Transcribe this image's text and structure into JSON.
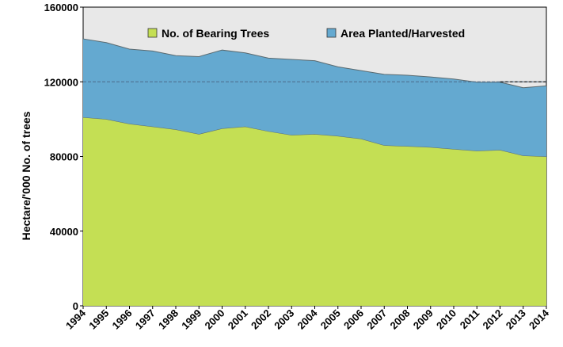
{
  "chart_data": {
    "type": "area",
    "stacked": true,
    "ylabel": "Hectare/'000 No. of trees",
    "xlabel": "",
    "ylim": [
      0,
      160000
    ],
    "yticks": [
      0,
      40000,
      80000,
      120000,
      160000
    ],
    "grid": true,
    "legend_position": "top",
    "x": [
      "1994",
      "1995",
      "1996",
      "1997",
      "1998",
      "1999",
      "2000",
      "2001",
      "2002",
      "2003",
      "2004",
      "2005",
      "2006",
      "2007",
      "2008",
      "2009",
      "2010",
      "2011",
      "2012",
      "2013",
      "2014"
    ],
    "series": [
      {
        "name": "No. of Bearing Trees",
        "color": "#c4df54",
        "values": [
          101000,
          100000,
          97500,
          96000,
          94500,
          92000,
          95000,
          96000,
          93500,
          91500,
          92000,
          91000,
          89500,
          86000,
          85500,
          85000,
          84000,
          83000,
          83500,
          80500,
          80000
        ]
      },
      {
        "name": "Area Planted/Harvested",
        "color": "#64a9d0",
        "values": [
          42000,
          41000,
          40000,
          40500,
          39500,
          41500,
          42000,
          39500,
          39200,
          40500,
          39300,
          37000,
          36500,
          38000,
          38000,
          37600,
          37500,
          36800,
          36300,
          36300,
          37800
        ]
      }
    ],
    "annotations": [
      {
        "type": "dashed-line",
        "y": 120000,
        "color": "#4a6a8a"
      },
      {
        "type": "dashed-line",
        "from_x": "2012",
        "to_x": "2014",
        "y": 120000,
        "color": "#000000"
      }
    ],
    "plot_background": "#e8e8e8"
  }
}
